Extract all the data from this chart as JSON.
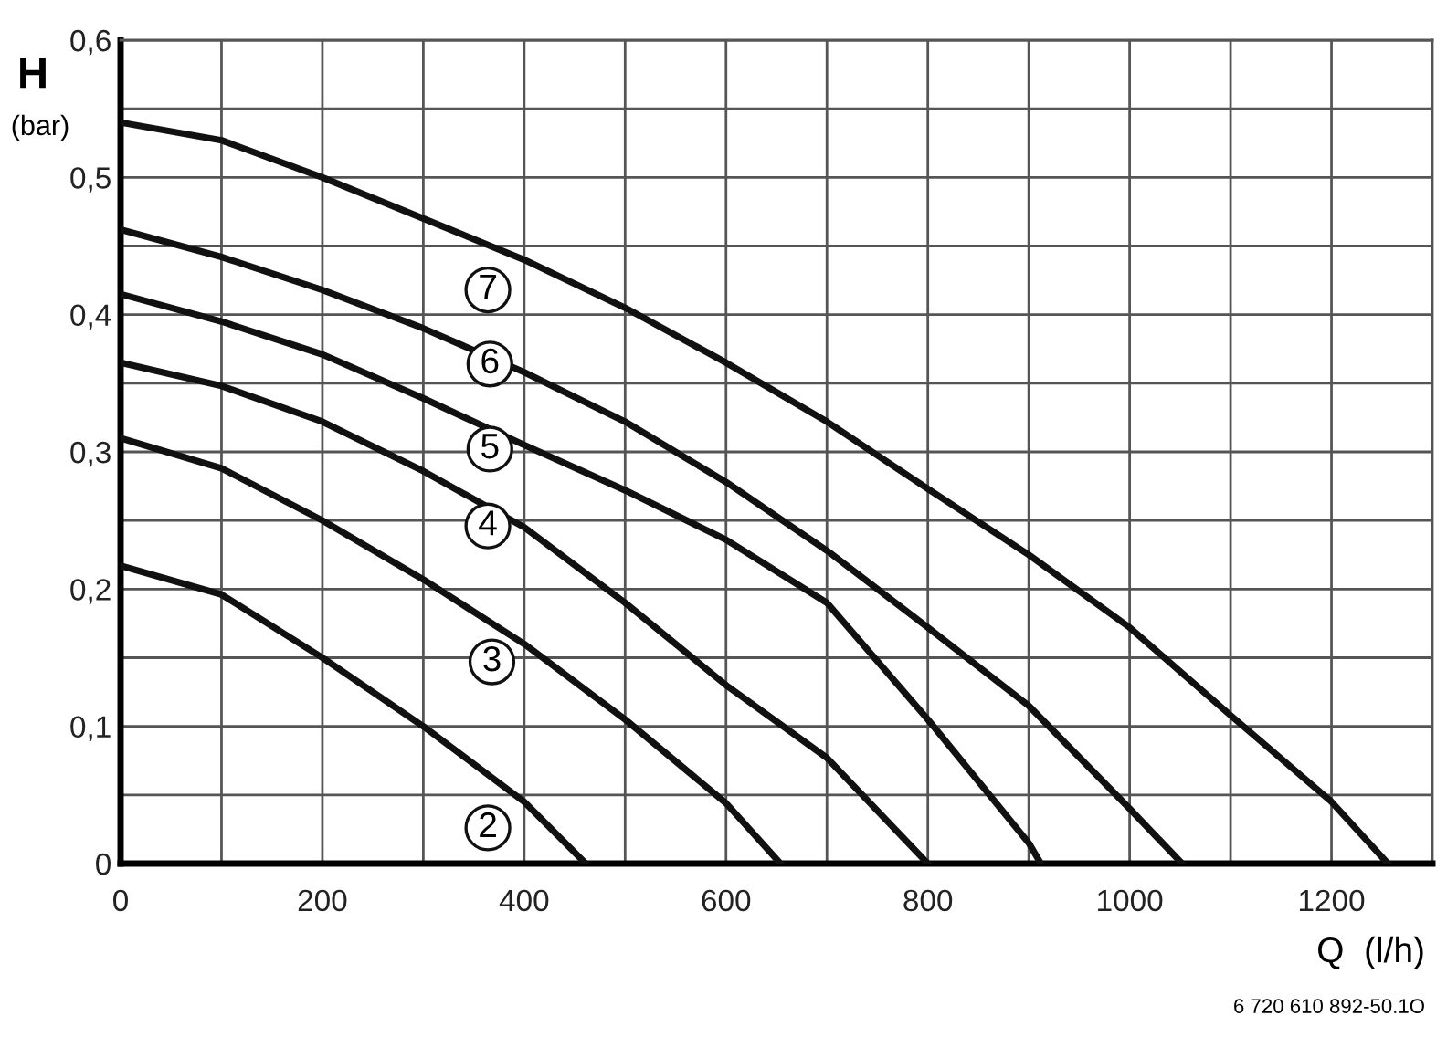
{
  "chart_data": {
    "type": "line",
    "xlabel": "Q  (l/h)",
    "ylabel": "H\n(bar)",
    "xlim": [
      0,
      1300
    ],
    "ylim": [
      0,
      0.6
    ],
    "xticks": [
      0,
      {
        "value": 100,
        "label": null
      },
      200,
      {
        "value": 300,
        "label": null
      },
      400,
      {
        "value": 500,
        "label": null
      },
      600,
      {
        "value": 700,
        "label": null
      },
      800,
      {
        "value": 900,
        "label": null
      },
      1000,
      {
        "value": 1100,
        "label": null
      },
      1200,
      {
        "value": 1300,
        "label": null
      }
    ],
    "yticks": [
      0,
      {
        "value": 0.05,
        "label": null
      },
      {
        "value": 0.1,
        "label": "0,1"
      },
      {
        "value": 0.15,
        "label": null
      },
      {
        "value": 0.2,
        "label": "0,2"
      },
      {
        "value": 0.25,
        "label": null
      },
      {
        "value": 0.3,
        "label": "0,3"
      },
      {
        "value": 0.35,
        "label": null
      },
      {
        "value": 0.4,
        "label": "0,4"
      },
      {
        "value": 0.45,
        "label": null
      },
      {
        "value": 0.5,
        "label": "0,5"
      },
      {
        "value": 0.55,
        "label": null
      },
      {
        "value": 0.6,
        "label": "0,6"
      }
    ],
    "grid": true,
    "marker": "none",
    "line_style": "solid",
    "series": [
      {
        "color": "#111111",
        "x": [
          0,
          100,
          200,
          300,
          400,
          461
        ],
        "values": [
          0.217,
          0.196,
          0.15,
          0.1,
          0.045,
          0
        ]
      },
      {
        "color": "#111111",
        "x": [
          0,
          100,
          200,
          300,
          400,
          500,
          600,
          654
        ],
        "values": [
          0.31,
          0.288,
          0.25,
          0.207,
          0.16,
          0.105,
          0.044,
          0
        ]
      },
      {
        "color": "#111111",
        "x": [
          0,
          100,
          200,
          300,
          400,
          500,
          600,
          700,
          800
        ],
        "values": [
          0.365,
          0.348,
          0.322,
          0.286,
          0.245,
          0.19,
          0.13,
          0.077,
          0
        ]
      },
      {
        "color": "#111111",
        "x": [
          0,
          100,
          200,
          300,
          400,
          500,
          600,
          700,
          800,
          900,
          912
        ],
        "values": [
          0.415,
          0.395,
          0.371,
          0.339,
          0.305,
          0.272,
          0.236,
          0.19,
          0.105,
          0.015,
          0
        ]
      },
      {
        "color": "#111111",
        "x": [
          0,
          100,
          200,
          300,
          400,
          500,
          600,
          700,
          800,
          900,
          1000,
          1052
        ],
        "values": [
          0.462,
          0.442,
          0.418,
          0.39,
          0.358,
          0.322,
          0.278,
          0.228,
          0.172,
          0.115,
          0.04,
          0
        ]
      },
      {
        "color": "#111111",
        "x": [
          0,
          100,
          200,
          300,
          400,
          500,
          600,
          700,
          800,
          900,
          1000,
          1100,
          1200,
          1256
        ],
        "values": [
          0.54,
          0.527,
          0.5,
          0.47,
          0.44,
          0.405,
          0.365,
          0.322,
          0.273,
          0.225,
          0.172,
          0.108,
          0.045,
          0
        ]
      }
    ],
    "annotations": [
      {
        "text": "2",
        "x": 364,
        "y": 0.026
      },
      {
        "text": "3",
        "x": 368,
        "y": 0.147
      },
      {
        "text": "4",
        "x": 364,
        "y": 0.246
      },
      {
        "text": "5",
        "x": 366,
        "y": 0.302
      },
      {
        "text": "6",
        "x": 366,
        "y": 0.364
      },
      {
        "text": "7",
        "x": 364,
        "y": 0.418
      },
      "6 720 610 892-50.1O"
    ]
  }
}
